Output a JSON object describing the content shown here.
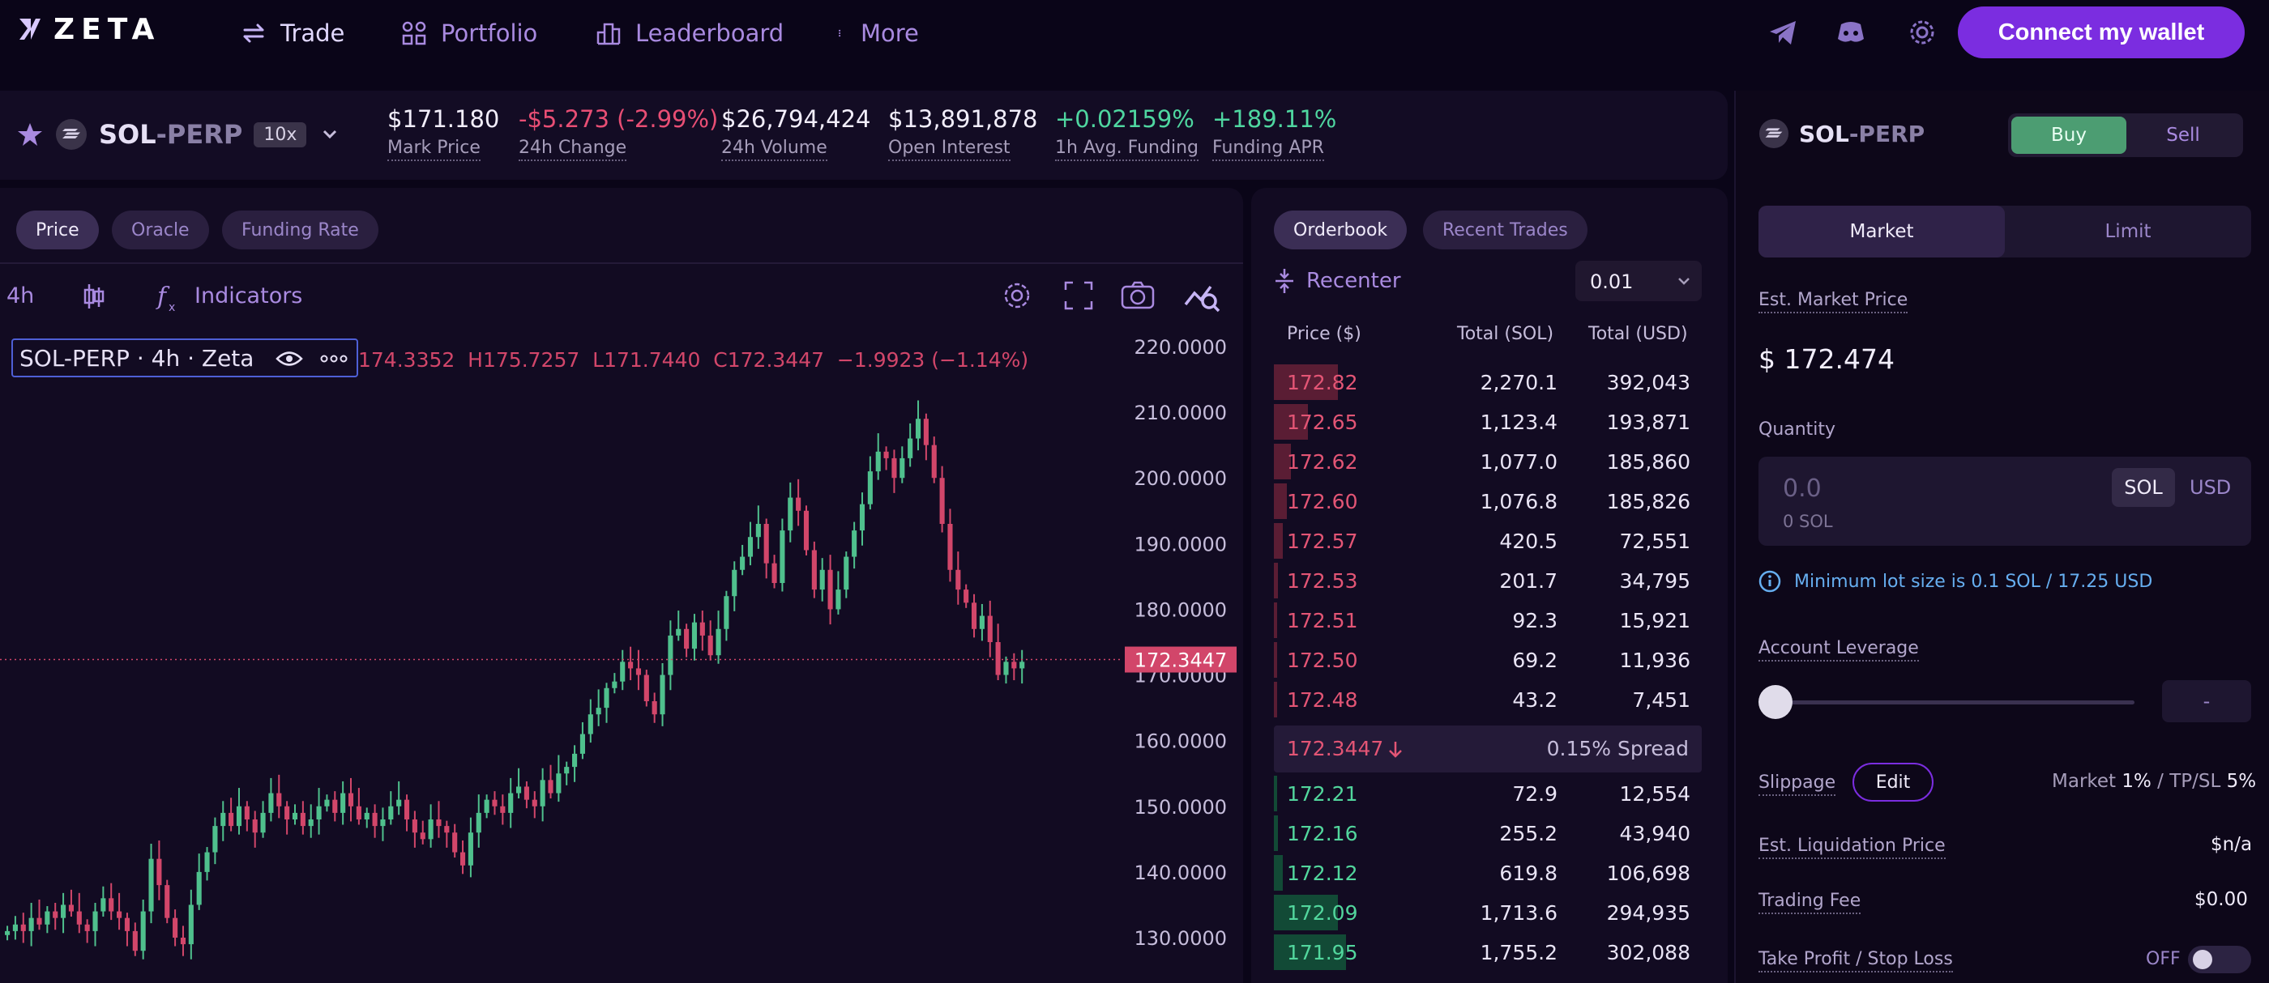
{
  "nav": {
    "logo": "ZETA",
    "items": [
      {
        "label": "Trade",
        "icon": "swap-arrows-icon"
      },
      {
        "label": "Portfolio",
        "icon": "portfolio-grid-icon"
      },
      {
        "label": "Leaderboard",
        "icon": "leaderboard-bars-icon"
      },
      {
        "label": "More",
        "icon": "more-dots-icon"
      }
    ],
    "connect_label": "Connect my wallet"
  },
  "market": {
    "symbol_base": "SOL",
    "symbol_suffix": "-PERP",
    "leverage": "10x",
    "stats": [
      {
        "value": "$171.180",
        "label": "Mark Price"
      },
      {
        "value": "-$5.273 (-2.99%)",
        "label": "24h Change"
      },
      {
        "value": "$26,794,424",
        "label": "24h Volume"
      },
      {
        "value": "$13,891,878",
        "label": "Open Interest"
      },
      {
        "value": "+0.02159%",
        "label": "1h Avg. Funding"
      },
      {
        "value": "+189.11%",
        "label": "Funding APR"
      }
    ]
  },
  "chart_tabs": [
    "Price",
    "Oracle",
    "Funding Rate"
  ],
  "toolbar": {
    "interval": "4h",
    "indicators": "Indicators"
  },
  "chart_legend": {
    "title": "SOL-PERP · 4h · Zeta",
    "ohlc": "174.3352  H175.7257  L171.7440  C172.3447  −1.9923 (−1.14%)"
  },
  "chart_data": {
    "type": "candlestick",
    "interval": "4h",
    "last_price": 172.3447,
    "last_price_label": "172.3447",
    "ylim": [
      125,
      225
    ],
    "y_ticks": [
      "220.0000",
      "210.0000",
      "200.0000",
      "190.0000",
      "180.0000",
      "170.0000",
      "160.0000",
      "150.0000",
      "140.0000",
      "130.0000"
    ],
    "colors": {
      "up": "#4fc08d",
      "down": "#d2466a"
    },
    "closes": [
      131,
      132,
      131,
      133,
      132,
      134,
      133,
      135,
      134,
      132,
      131,
      134,
      136,
      134,
      133,
      131,
      128,
      134,
      142,
      138,
      133,
      130,
      129,
      135,
      140,
      143,
      147,
      149,
      147,
      150,
      148,
      146,
      149,
      152,
      150,
      148,
      149,
      147,
      148,
      150,
      151,
      149,
      152,
      150,
      148,
      149,
      147,
      148,
      150,
      151,
      148,
      146,
      145,
      148,
      147,
      146,
      143,
      141,
      146,
      149,
      151,
      150,
      149,
      152,
      153,
      151,
      150,
      154,
      152,
      155,
      156,
      158,
      161,
      164,
      165,
      168,
      169,
      172,
      171,
      170,
      166,
      164,
      170,
      176,
      177,
      174,
      178,
      176,
      173,
      177,
      182,
      186,
      188,
      191,
      193,
      187,
      184,
      192,
      197,
      195,
      189,
      183,
      186,
      180,
      183,
      188,
      192,
      196,
      201,
      204,
      203,
      200,
      203,
      206,
      209,
      205,
      200,
      193,
      186,
      183,
      181,
      177,
      179,
      175,
      170,
      172,
      171,
      172
    ]
  },
  "orderbook": {
    "tabs": [
      "Orderbook",
      "Recent Trades"
    ],
    "recenter": "Recenter",
    "tick": "0.01",
    "headers": [
      "Price ($)",
      "Total (SOL)",
      "Total (USD)"
    ],
    "asks": [
      {
        "price": "172.82",
        "sol": "2,270.1",
        "usd": "392,043",
        "depth": 0.15
      },
      {
        "price": "172.65",
        "sol": "1,123.4",
        "usd": "193,871",
        "depth": 0.08
      },
      {
        "price": "172.62",
        "sol": "1,077.0",
        "usd": "185,860",
        "depth": 0.04
      },
      {
        "price": "172.60",
        "sol": "1,076.8",
        "usd": "185,826",
        "depth": 0.03
      },
      {
        "price": "172.57",
        "sol": "420.5",
        "usd": "72,551",
        "depth": 0.02
      },
      {
        "price": "172.53",
        "sol": "201.7",
        "usd": "34,795",
        "depth": 0.01
      },
      {
        "price": "172.51",
        "sol": "92.3",
        "usd": "15,921",
        "depth": 0.005
      },
      {
        "price": "172.50",
        "sol": "69.2",
        "usd": "11,936",
        "depth": 0.005
      },
      {
        "price": "172.48",
        "sol": "43.2",
        "usd": "7,451",
        "depth": 0.003
      }
    ],
    "spread_price": "172.3447",
    "spread_label": "0.15% Spread",
    "bids": [
      {
        "price": "172.21",
        "sol": "72.9",
        "usd": "12,554",
        "depth": 0.005
      },
      {
        "price": "172.16",
        "sol": "255.2",
        "usd": "43,940",
        "depth": 0.01
      },
      {
        "price": "172.12",
        "sol": "619.8",
        "usd": "106,698",
        "depth": 0.02
      },
      {
        "price": "172.09",
        "sol": "1,713.6",
        "usd": "294,935",
        "depth": 0.15
      },
      {
        "price": "171.95",
        "sol": "1,755.2",
        "usd": "302,088",
        "depth": 0.17
      }
    ]
  },
  "order_form": {
    "symbol_base": "SOL",
    "symbol_suffix": "-PERP",
    "buy": "Buy",
    "sell": "Sell",
    "market": "Market",
    "limit": "Limit",
    "est_price_label": "Est. Market Price",
    "est_price": "$ 172.474",
    "quantity_label": "Quantity",
    "quantity_placeholder": "0.0",
    "quantity_sub": "0 SOL",
    "unit_sol": "SOL",
    "unit_usd": "USD",
    "min_lot": "Minimum lot size is 0.1 SOL / 17.25 USD",
    "leverage_label": "Account Leverage",
    "leverage_value": "-",
    "leverage_level": 0,
    "slippage_label": "Slippage",
    "edit": "Edit",
    "slip_market": "Market ",
    "slip_market_val": "1%",
    "slip_sep": " / TP/SL ",
    "slip_tpsl_val": "5%",
    "liq_label": "Est. Liquidation Price",
    "liq_value": "$n/a",
    "fee_label": "Trading Fee",
    "fee_value": "$0.00",
    "tpsl_label": "Take Profit / Stop Loss",
    "tpsl_state": "OFF"
  }
}
